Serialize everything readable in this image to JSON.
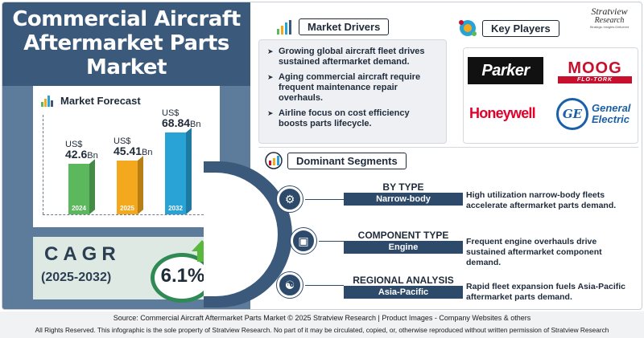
{
  "title": {
    "line1": "Commercial Aircraft",
    "line2": "Aftermarket Parts",
    "line3": "Market"
  },
  "forecast": {
    "heading": "Market Forecast",
    "bars": [
      {
        "year": "2024",
        "currency": "US$",
        "value": "42.6",
        "unit": "Bn",
        "amount": 42.6,
        "color": "#5cb85c"
      },
      {
        "year": "2025",
        "currency": "US$",
        "value": "45.41",
        "unit": "Bn",
        "amount": 45.41,
        "color": "#f4a81d"
      },
      {
        "year": "2032",
        "currency": "US$",
        "value": "68.84",
        "unit": "Bn",
        "amount": 68.84,
        "color": "#29a3d6"
      }
    ]
  },
  "cagr": {
    "label": "CAGR",
    "period": "(2025-2032)",
    "value": "6.1%"
  },
  "drivers": {
    "heading": "Market Drivers",
    "items": [
      "Growing global aircraft fleet drives sustained aftermarket demand.",
      "Aging commercial aircraft require frequent maintenance repair overhauls.",
      "Airline focus on cost efficiency boosts parts lifecycle."
    ]
  },
  "players": {
    "heading": "Key Players",
    "parker": "Parker",
    "moog": "MOOG",
    "moog_sub": "FLO-TORK",
    "honeywell": "Honeywell",
    "ge_mark": "GE",
    "ge_line1": "General",
    "ge_line2": "Electric"
  },
  "brand": {
    "name": "Stratview",
    "sub": "Research",
    "tagline": "Strategic Insights Delivered"
  },
  "segments": {
    "heading": "Dominant Segments",
    "items": [
      {
        "title": "BY TYPE",
        "value": "Narrow-body",
        "desc": "High utilization narrow-body fleets accelerate aftermarket parts demand.",
        "icon": "aircraft-gear-icon"
      },
      {
        "title": "COMPONENT TYPE",
        "value": "Engine",
        "desc": "Frequent engine overhauls drive sustained aftermarket component demand.",
        "icon": "box-icon"
      },
      {
        "title": "REGIONAL ANALYSIS",
        "value": "Asia-Pacific",
        "desc": "Rapid fleet expansion fuels Asia-Pacific aftermarket parts demand.",
        "icon": "globe-icon"
      }
    ]
  },
  "footer": {
    "source": "Source:  Commercial Aircraft Aftermarket Parts Market © 2025 Stratview Research | Product Images - Company Websites & others",
    "rights": "All Rights Reserved. This infographic is the sole property of Stratview Research. No part of it may be circulated, copied, or, otherwise reproduced without written permission of Stratview Research"
  }
}
